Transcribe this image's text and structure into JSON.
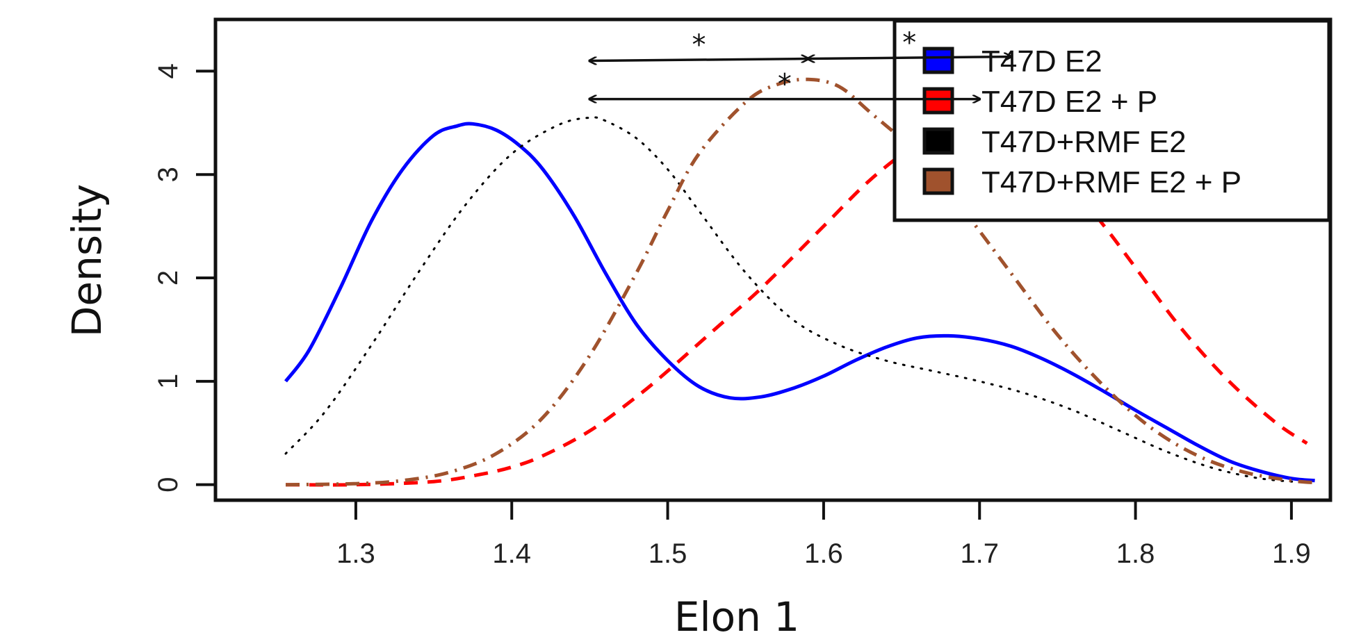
{
  "chart_data": {
    "type": "line",
    "xlabel": "Elon 1",
    "ylabel": "Density",
    "xlim": [
      1.21,
      1.925
    ],
    "ylim": [
      -0.15,
      4.5
    ],
    "xticks": [
      1.3,
      1.4,
      1.5,
      1.6,
      1.7,
      1.8,
      1.9
    ],
    "xtick_labels": [
      "1.3",
      "1.4",
      "1.5",
      "1.6",
      "1.7",
      "1.8",
      "1.9"
    ],
    "yticks": [
      0,
      1,
      2,
      3,
      4
    ],
    "ytick_labels": [
      "0",
      "1",
      "2",
      "3",
      "4"
    ],
    "grid": false,
    "legend_position": "top-right",
    "series": [
      {
        "name": "T47D E2",
        "color": "#0000ff",
        "line_style": "solid",
        "x": [
          1.255,
          1.27,
          1.29,
          1.31,
          1.33,
          1.35,
          1.365,
          1.375,
          1.39,
          1.405,
          1.42,
          1.44,
          1.46,
          1.48,
          1.5,
          1.52,
          1.54,
          1.56,
          1.58,
          1.6,
          1.62,
          1.64,
          1.66,
          1.68,
          1.7,
          1.72,
          1.74,
          1.76,
          1.78,
          1.8,
          1.82,
          1.84,
          1.86,
          1.88,
          1.9,
          1.915
        ],
        "y": [
          1.0,
          1.3,
          1.9,
          2.55,
          3.05,
          3.38,
          3.47,
          3.49,
          3.43,
          3.28,
          3.05,
          2.6,
          2.05,
          1.55,
          1.2,
          0.95,
          0.84,
          0.85,
          0.93,
          1.05,
          1.2,
          1.33,
          1.42,
          1.44,
          1.41,
          1.34,
          1.22,
          1.07,
          0.9,
          0.72,
          0.55,
          0.38,
          0.23,
          0.13,
          0.06,
          0.04
        ]
      },
      {
        "name": "T47D E2 + P",
        "color": "#ff0000",
        "line_style": "dashed",
        "x": [
          1.255,
          1.3,
          1.35,
          1.38,
          1.4,
          1.42,
          1.45,
          1.48,
          1.5,
          1.53,
          1.56,
          1.6,
          1.63,
          1.66,
          1.68,
          1.7,
          1.72,
          1.75,
          1.78,
          1.8,
          1.83,
          1.86,
          1.89,
          1.91
        ],
        "y": [
          0.0,
          0.0,
          0.03,
          0.1,
          0.17,
          0.28,
          0.52,
          0.85,
          1.1,
          1.5,
          1.9,
          2.5,
          2.95,
          3.3,
          3.45,
          3.48,
          3.4,
          3.05,
          2.5,
          2.1,
          1.5,
          1.0,
          0.6,
          0.4
        ]
      },
      {
        "name": "T47D+RMF E2",
        "color": "#000000",
        "line_style": "dotted",
        "x": [
          1.255,
          1.28,
          1.31,
          1.34,
          1.37,
          1.4,
          1.43,
          1.45,
          1.46,
          1.48,
          1.5,
          1.52,
          1.55,
          1.58,
          1.61,
          1.64,
          1.67,
          1.7,
          1.73,
          1.76,
          1.79,
          1.82,
          1.85,
          1.88,
          1.91
        ],
        "y": [
          0.3,
          0.7,
          1.35,
          2.05,
          2.7,
          3.2,
          3.48,
          3.55,
          3.52,
          3.35,
          3.05,
          2.65,
          2.05,
          1.6,
          1.35,
          1.2,
          1.1,
          1.0,
          0.88,
          0.72,
          0.52,
          0.32,
          0.16,
          0.06,
          0.02
        ]
      },
      {
        "name": "T47D+RMF E2 + P",
        "color": "#a0522d",
        "line_style": "dot-dash",
        "x": [
          1.255,
          1.3,
          1.33,
          1.36,
          1.39,
          1.42,
          1.45,
          1.48,
          1.5,
          1.52,
          1.55,
          1.57,
          1.59,
          1.61,
          1.63,
          1.66,
          1.69,
          1.72,
          1.75,
          1.78,
          1.81,
          1.84,
          1.87,
          1.9,
          1.915
        ],
        "y": [
          0.0,
          0.01,
          0.04,
          0.12,
          0.3,
          0.65,
          1.25,
          2.05,
          2.65,
          3.2,
          3.7,
          3.87,
          3.92,
          3.85,
          3.6,
          3.2,
          2.65,
          2.05,
          1.45,
          0.95,
          0.55,
          0.28,
          0.12,
          0.04,
          0.02
        ]
      }
    ],
    "annotations": [
      {
        "type": "double-arrow",
        "x1": 1.45,
        "y1": 4.1,
        "x2": 1.59,
        "y2": 4.12,
        "label": "*"
      },
      {
        "type": "double-arrow",
        "x1": 1.59,
        "y1": 4.12,
        "x2": 1.72,
        "y2": 4.14,
        "label": "*"
      },
      {
        "type": "double-arrow",
        "x1": 1.45,
        "y1": 3.73,
        "x2": 1.7,
        "y2": 3.73,
        "label": "*"
      }
    ]
  }
}
